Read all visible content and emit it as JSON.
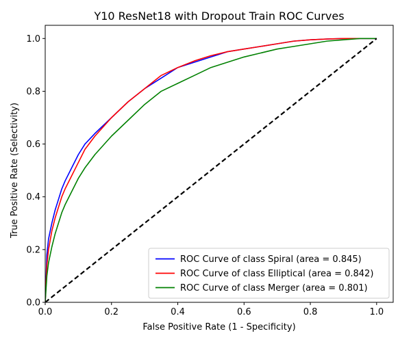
{
  "chart_data": {
    "type": "line",
    "title": "Y10 ResNet18 with Dropout Train ROC Curves",
    "xlabel": "False Positive Rate (1 - Specificity)",
    "ylabel": "True Positive Rate (Selectivity)",
    "xlim": [
      0,
      1.05
    ],
    "ylim": [
      0,
      1.05
    ],
    "xticks": [
      {
        "value": 0.0,
        "label": "0.0"
      },
      {
        "value": 0.2,
        "label": "0.2"
      },
      {
        "value": 0.4,
        "label": "0.4"
      },
      {
        "value": 0.6,
        "label": "0.6"
      },
      {
        "value": 0.8,
        "label": "0.8"
      },
      {
        "value": 1.0,
        "label": "1.0"
      }
    ],
    "yticks": [
      {
        "value": 0.0,
        "label": "0.0"
      },
      {
        "value": 0.2,
        "label": "0.2"
      },
      {
        "value": 0.4,
        "label": "0.4"
      },
      {
        "value": 0.6,
        "label": "0.6"
      },
      {
        "value": 0.8,
        "label": "0.8"
      },
      {
        "value": 1.0,
        "label": "1.0"
      }
    ],
    "grid": false,
    "legend_position": "lower-right",
    "series": [
      {
        "name": "ROC Curve of class Spiral (area = 0.845)",
        "color": "#0000ff",
        "x": [
          0,
          0.005,
          0.01,
          0.02,
          0.03,
          0.04,
          0.05,
          0.06,
          0.08,
          0.1,
          0.12,
          0.15,
          0.2,
          0.25,
          0.3,
          0.35,
          0.4,
          0.45,
          0.5,
          0.55,
          0.6,
          0.65,
          0.7,
          0.75,
          0.8,
          0.85,
          0.9,
          0.95,
          1.0
        ],
        "y": [
          0,
          0.18,
          0.24,
          0.3,
          0.35,
          0.39,
          0.43,
          0.46,
          0.51,
          0.56,
          0.6,
          0.64,
          0.7,
          0.76,
          0.81,
          0.85,
          0.89,
          0.91,
          0.93,
          0.95,
          0.96,
          0.97,
          0.98,
          0.99,
          0.995,
          0.998,
          1.0,
          1.0,
          1.0
        ]
      },
      {
        "name": "ROC Curve of class Elliptical (area = 0.842)",
        "color": "#ff0000",
        "x": [
          0,
          0.005,
          0.01,
          0.02,
          0.03,
          0.04,
          0.05,
          0.06,
          0.08,
          0.1,
          0.12,
          0.15,
          0.2,
          0.25,
          0.3,
          0.35,
          0.4,
          0.45,
          0.5,
          0.55,
          0.6,
          0.65,
          0.7,
          0.75,
          0.8,
          0.85,
          0.9,
          0.95,
          1.0
        ],
        "y": [
          0,
          0.14,
          0.2,
          0.27,
          0.32,
          0.36,
          0.4,
          0.43,
          0.48,
          0.53,
          0.58,
          0.63,
          0.7,
          0.76,
          0.81,
          0.86,
          0.89,
          0.915,
          0.935,
          0.95,
          0.96,
          0.97,
          0.98,
          0.99,
          0.995,
          0.998,
          1.0,
          1.0,
          1.0
        ]
      },
      {
        "name": "ROC Curve of class Merger (area = 0.801)",
        "color": "#008000",
        "x": [
          0,
          0.005,
          0.01,
          0.02,
          0.03,
          0.04,
          0.05,
          0.06,
          0.08,
          0.1,
          0.12,
          0.15,
          0.2,
          0.25,
          0.3,
          0.35,
          0.4,
          0.45,
          0.5,
          0.55,
          0.6,
          0.65,
          0.7,
          0.75,
          0.8,
          0.85,
          0.9,
          0.95,
          1.0
        ],
        "y": [
          0,
          0.1,
          0.15,
          0.21,
          0.26,
          0.3,
          0.34,
          0.37,
          0.42,
          0.47,
          0.51,
          0.56,
          0.63,
          0.69,
          0.75,
          0.8,
          0.83,
          0.86,
          0.89,
          0.91,
          0.93,
          0.945,
          0.96,
          0.97,
          0.98,
          0.99,
          0.995,
          1.0,
          1.0
        ]
      },
      {
        "name": "",
        "color": "#000000",
        "style": "dashed",
        "x": [
          0,
          1.0
        ],
        "y": [
          0,
          1.0
        ]
      }
    ]
  }
}
